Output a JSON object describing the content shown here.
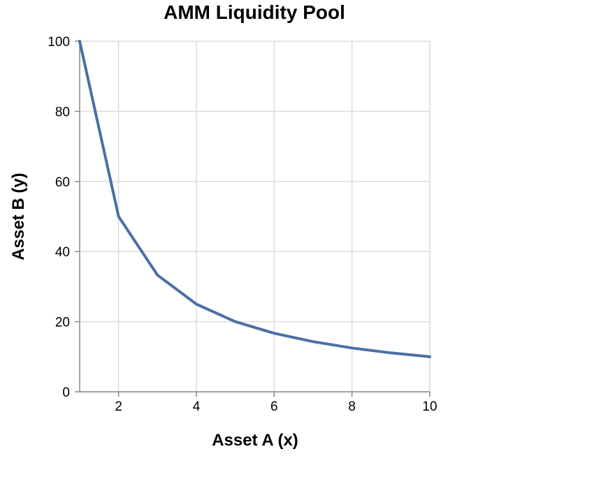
{
  "chart_data": {
    "type": "line",
    "title": "AMM Liquidity Pool",
    "xlabel": "Asset A (x)",
    "ylabel": "Asset B (y)",
    "xlim": [
      1,
      10
    ],
    "ylim": [
      0,
      100
    ],
    "x_ticks": [
      2,
      4,
      6,
      8,
      10
    ],
    "y_ticks": [
      0,
      20,
      40,
      60,
      80,
      100
    ],
    "grid": true,
    "series": [
      {
        "x": [
          1,
          2,
          3,
          4,
          5,
          6,
          7,
          8,
          9,
          10
        ],
        "values": [
          100,
          50,
          33.3,
          25,
          20,
          16.7,
          14.3,
          12.5,
          11.1,
          10
        ],
        "color": "#4c6fa5"
      }
    ],
    "colors": {
      "grid": "#dcdcdc",
      "axis": "#888888",
      "line": "#4c6fa5"
    }
  }
}
